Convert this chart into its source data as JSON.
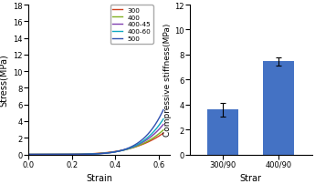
{
  "left_chart": {
    "xlabel": "Strain",
    "ylabel": "Stress(MPa)",
    "xlim": [
      0,
      0.65
    ],
    "ylim": [
      0,
      18
    ],
    "xticks": [
      0,
      0.2,
      0.4,
      0.6
    ],
    "yticks": [
      0,
      2,
      4,
      6,
      8,
      10,
      12,
      14,
      16,
      18
    ],
    "curves": [
      {
        "label": "300",
        "color": "#d04020",
        "k": 22.0,
        "n": 4.5
      },
      {
        "label": "400",
        "color": "#80b020",
        "k": 32.0,
        "n": 5.0
      },
      {
        "label": "400-45",
        "color": "#8040b0",
        "k": 50.0,
        "n": 5.5
      },
      {
        "label": "400-60",
        "color": "#10a8c0",
        "k": 75.0,
        "n": 6.0
      },
      {
        "label": "500",
        "color": "#3050b0",
        "k": 120.0,
        "n": 6.5
      }
    ]
  },
  "right_chart": {
    "xlabel": "Strar",
    "ylabel": "Compressive stiffness(MPa)",
    "ylim": [
      0,
      12
    ],
    "yticks": [
      0,
      2,
      4,
      6,
      8,
      10,
      12
    ],
    "bars": [
      {
        "label": "300/90",
        "value": 3.6,
        "error": 0.55,
        "color": "#4472C4"
      },
      {
        "label": "400/90",
        "value": 7.45,
        "error": 0.35,
        "color": "#4472C4"
      }
    ]
  },
  "legend": {
    "labels": [
      "300",
      "400",
      "400-45",
      "400-60",
      "500"
    ],
    "colors": [
      "#d04020",
      "#80b020",
      "#8040b0",
      "#10a8c0",
      "#3050b0"
    ]
  }
}
